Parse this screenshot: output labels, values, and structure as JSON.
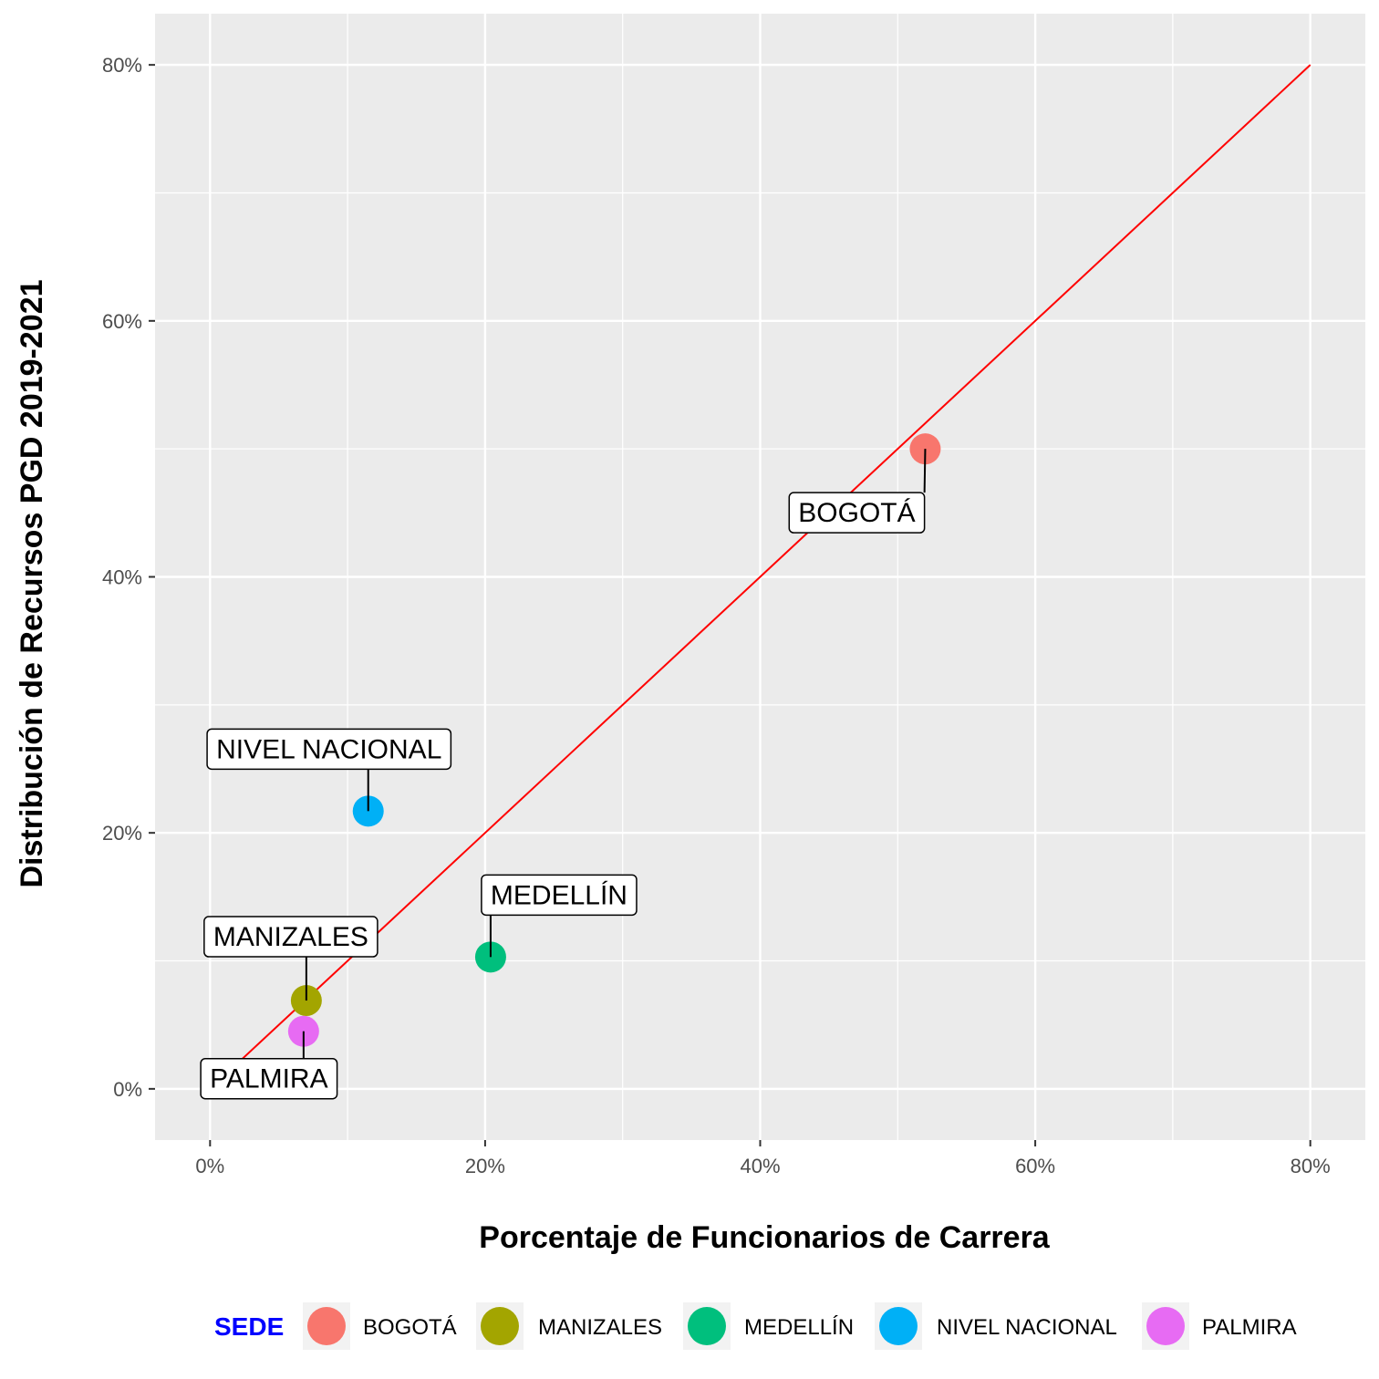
{
  "chart_data": {
    "type": "scatter",
    "xlabel": "Porcentaje de Funcionarios de Carrera",
    "ylabel": "Distribución de Recursos PGD 2019-2021",
    "xlim": [
      -0.04,
      0.84
    ],
    "ylim": [
      -0.04,
      0.84
    ],
    "x_ticks": [
      0,
      0.2,
      0.4,
      0.6,
      0.8
    ],
    "x_tick_labels": [
      "0%",
      "20%",
      "40%",
      "60%",
      "80%"
    ],
    "y_ticks": [
      0,
      0.2,
      0.4,
      0.6,
      0.8
    ],
    "y_tick_labels": [
      "0%",
      "20%",
      "40%",
      "60%",
      "80%"
    ],
    "grid": true,
    "reference_line": {
      "from": [
        0.02,
        0.02
      ],
      "to": [
        0.8,
        0.8
      ],
      "color": "#ff0000"
    },
    "points": [
      {
        "name": "BOGOTÁ",
        "x": 0.52,
        "y": 0.5,
        "color": "#F8766D"
      },
      {
        "name": "MANIZALES",
        "x": 0.07,
        "y": 0.069,
        "color": "#A3A500"
      },
      {
        "name": "MEDELLÍN",
        "x": 0.204,
        "y": 0.103,
        "color": "#00BF7D"
      },
      {
        "name": "NIVEL NACIONAL",
        "x": 0.115,
        "y": 0.217,
        "color": "#00B0F6"
      },
      {
        "name": "PALMIRA",
        "x": 0.068,
        "y": 0.045,
        "color": "#E76BF3"
      }
    ],
    "legend": {
      "title": "SEDE",
      "title_color": "#0000ff",
      "position": "bottom",
      "items": [
        "BOGOTÁ",
        "MANIZALES",
        "MEDELLÍN",
        "NIVEL NACIONAL",
        "PALMIRA"
      ]
    }
  }
}
